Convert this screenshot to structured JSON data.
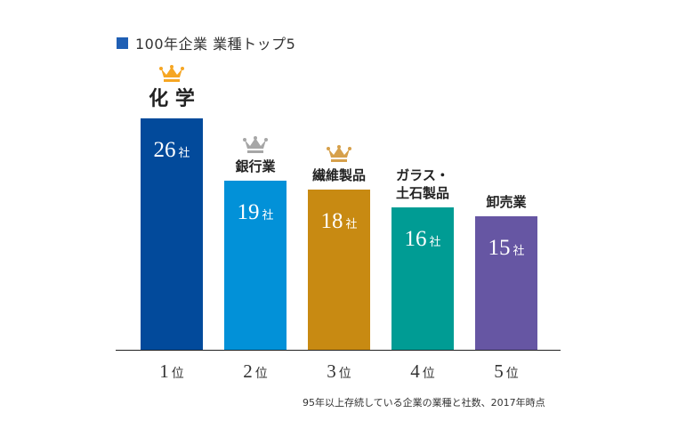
{
  "chart_data": {
    "type": "bar",
    "title": "100年企業 業種トップ5",
    "categories": [
      "化 学",
      "銀行業",
      "繊維製品",
      "ガラス・\n土石製品",
      "卸売業"
    ],
    "values": [
      26,
      19,
      18,
      16,
      15
    ],
    "value_unit": "社",
    "ranks": [
      "1",
      "2",
      "3",
      "4",
      "5"
    ],
    "rank_unit": "位",
    "crowns": [
      "gold",
      "silver",
      "bronze",
      null,
      null
    ],
    "bar_colors": [
      "#024a9b",
      "#0291d8",
      "#c88a12",
      "#009c94",
      "#6656a3"
    ],
    "crown_colors": {
      "gold": "#f6a623",
      "silver": "#a6a6a6",
      "bronze": "#d6a04a"
    },
    "title_marker_color": "#1f5fb4",
    "xlabel": "",
    "ylabel": "",
    "ylim": [
      0,
      26
    ],
    "grid": false,
    "legend": "none",
    "footnote": "95年以上存続している企業の業種と社数、2017年時点"
  }
}
